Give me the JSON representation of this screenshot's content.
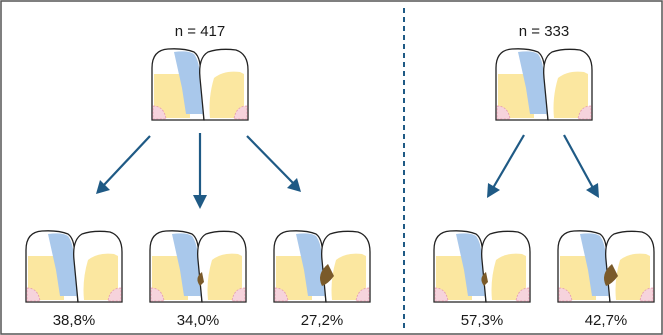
{
  "groups": [
    {
      "n_label": "n = 417"
    },
    {
      "n_label": "n = 333"
    }
  ],
  "outcomes": [
    {
      "percent": "38,8%",
      "lesion": "none"
    },
    {
      "percent": "34,0%",
      "lesion": "small"
    },
    {
      "percent": "27,2%",
      "lesion": "large"
    },
    {
      "percent": "57,3%",
      "lesion": "small"
    },
    {
      "percent": "42,7%",
      "lesion": "large"
    }
  ],
  "colors": {
    "border": "#555555",
    "divider": "#1f5a85",
    "arrow": "#1f5a85",
    "yellow": "#fbe7a0",
    "blue": "#a9c8eb",
    "brown": "#7a5a2a",
    "pink": "#f6d3dc"
  },
  "icons": [
    "tooth-pair-icon",
    "arrow-down-icon"
  ]
}
